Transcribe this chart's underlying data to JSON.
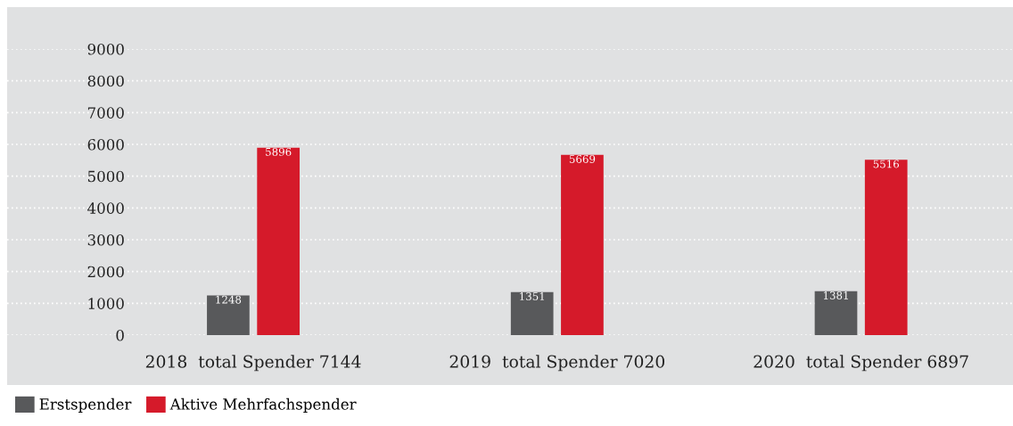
{
  "chart_data": {
    "type": "bar",
    "categories": [
      "2018  total Spender 7144",
      "2019  total Spender 7020",
      "2020  total Spender 6897"
    ],
    "series": [
      {
        "name": "Erstspender",
        "color": "#58595b",
        "values": [
          1248,
          1351,
          1381
        ]
      },
      {
        "name": "Aktive Mehrfachspender",
        "color": "#d51a2a",
        "values": [
          5896,
          5669,
          5516
        ]
      }
    ],
    "ylim": [
      0,
      9000
    ],
    "yticks": [
      0,
      1000,
      2000,
      3000,
      4000,
      5000,
      6000,
      7000,
      8000,
      9000
    ],
    "grid": "y",
    "legend": "bottom left",
    "data_labels": true
  }
}
